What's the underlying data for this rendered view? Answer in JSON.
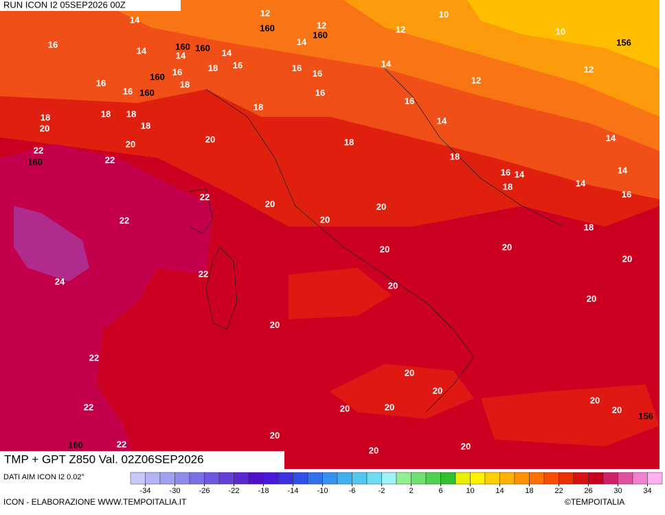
{
  "header": {
    "run": "RUN ICON I2 05SEP2026 00Z"
  },
  "footer": {
    "title": "TMP + GPT Z850 Val. 02Z06SEP2026",
    "source": "DATI AIM ICON I2 0.02°",
    "credit": "ICON - ELABORAZIONE WWW.TEMPOITALIA.IT",
    "copyright": "©TEMPOITALIA"
  },
  "map": {
    "temperature_labels": [
      "14",
      "12",
      "12",
      "10",
      "12",
      "10",
      "16",
      "14",
      "14",
      "14",
      "14",
      "16",
      "18",
      "16",
      "16",
      "16",
      "14",
      "12",
      "16",
      "16",
      "18",
      "12",
      "16",
      "16",
      "18",
      "18",
      "20",
      "18",
      "18",
      "18",
      "14",
      "20",
      "20",
      "18",
      "14",
      "22",
      "22",
      "18",
      "16",
      "14",
      "18",
      "14",
      "14",
      "16",
      "22",
      "20",
      "20",
      "20",
      "22",
      "18",
      "20",
      "20",
      "20",
      "24",
      "22",
      "20",
      "20",
      "20",
      "22",
      "20",
      "20",
      "20",
      "22",
      "20",
      "20",
      "20",
      "20",
      "22",
      "20",
      "20"
    ],
    "geopotential_labels": [
      "160",
      "160",
      "156",
      "160",
      "160",
      "160",
      "160",
      "160",
      "160",
      "156"
    ]
  },
  "colorbar": {
    "lim": [
      -36,
      36
    ],
    "ticks": [
      -34,
      -30,
      -26,
      -22,
      -18,
      -14,
      -10,
      -6,
      -2,
      2,
      6,
      10,
      14,
      18,
      22,
      26,
      30,
      34
    ],
    "colors": [
      "#c8c8f8",
      "#b4b4f4",
      "#a0a0f0",
      "#8c8ce8",
      "#7a70e4",
      "#7058e0",
      "#6440d8",
      "#5a28d0",
      "#5010c8",
      "#4818d8",
      "#3c30e0",
      "#3050e8",
      "#3470ec",
      "#3890f0",
      "#40b0f0",
      "#50c8f0",
      "#70dcf4",
      "#a0f0f8",
      "#90f090",
      "#70e070",
      "#50d050",
      "#30c030",
      "#e8f000",
      "#fff000",
      "#ffd000",
      "#ffb000",
      "#ff9000",
      "#ff7000",
      "#f85000",
      "#e83000",
      "#d81010",
      "#c80020",
      "#d0206a",
      "#e050a0",
      "#f080d0",
      "#ffb0f0"
    ]
  }
}
